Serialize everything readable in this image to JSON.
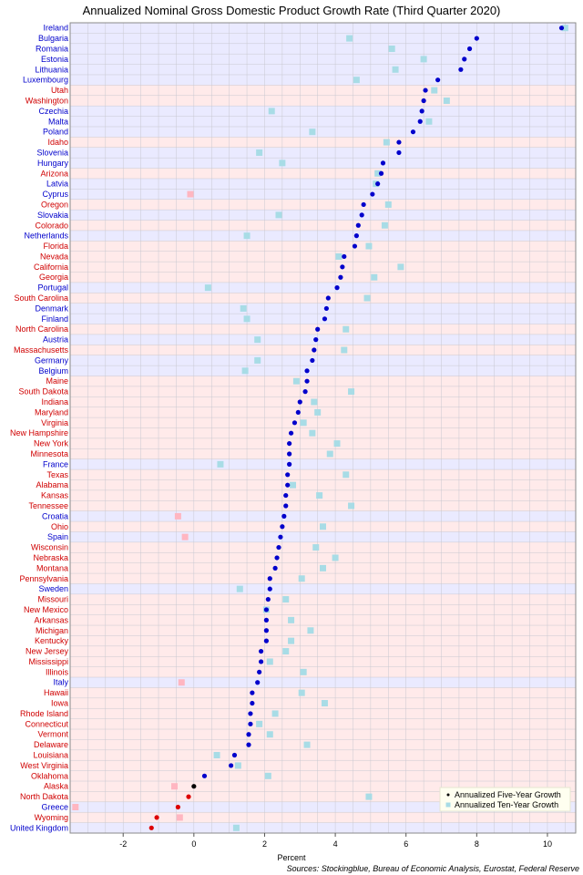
{
  "chart_data": {
    "type": "scatter",
    "title": "Annualized Nominal Gross Domestic Product Growth Rate (Third Quarter 2020)",
    "xlabel": "Percent",
    "source": "Sources: Stockingblue, Bureau of Economic Analysis, Eurostat, Federal Reserve",
    "xlim": [
      -3.5,
      10.8
    ],
    "x_ticks": [
      -2,
      0,
      2,
      4,
      6,
      8,
      10
    ],
    "grid": true,
    "legend_position": "bottom-right",
    "series": [
      {
        "name": "Annualized Five-Year Growth",
        "marker": "dot"
      },
      {
        "name": "Annualized Ten-Year Growth",
        "marker": "square"
      }
    ],
    "colors": {
      "us_label": "#d00000",
      "eu_label": "#0000cc",
      "us_band": "#ffeaea",
      "eu_band": "#eaeaff",
      "dot_positive": "#0000cc",
      "dot_negative": "#dd0000",
      "dot_zero": "#000000",
      "square_positive": "#a8dce6",
      "square_negative": "#ffb6c1",
      "grid": "#c8c8d0",
      "legend_bg": "#fffff0"
    },
    "rows": [
      {
        "name": "Ireland",
        "region": "eu",
        "five": 10.4,
        "ten": 10.5
      },
      {
        "name": "Bulgaria",
        "region": "eu",
        "five": 8.0,
        "ten": 4.4
      },
      {
        "name": "Romania",
        "region": "eu",
        "five": 7.8,
        "ten": 5.6
      },
      {
        "name": "Estonia",
        "region": "eu",
        "five": 7.65,
        "ten": 6.5
      },
      {
        "name": "Lithuania",
        "region": "eu",
        "five": 7.55,
        "ten": 5.7
      },
      {
        "name": "Luxembourg",
        "region": "eu",
        "five": 6.9,
        "ten": 4.6
      },
      {
        "name": "Utah",
        "region": "us",
        "five": 6.55,
        "ten": 6.8
      },
      {
        "name": "Washington",
        "region": "us",
        "five": 6.5,
        "ten": 7.15
      },
      {
        "name": "Czechia",
        "region": "eu",
        "five": 6.45,
        "ten": 2.2
      },
      {
        "name": "Malta",
        "region": "eu",
        "five": 6.4,
        "ten": 6.65
      },
      {
        "name": "Poland",
        "region": "eu",
        "five": 6.2,
        "ten": 3.35
      },
      {
        "name": "Idaho",
        "region": "us",
        "five": 5.8,
        "ten": 5.45
      },
      {
        "name": "Slovenia",
        "region": "eu",
        "five": 5.8,
        "ten": 1.85
      },
      {
        "name": "Hungary",
        "region": "eu",
        "five": 5.35,
        "ten": 2.5
      },
      {
        "name": "Arizona",
        "region": "us",
        "five": 5.3,
        "ten": 5.2
      },
      {
        "name": "Latvia",
        "region": "eu",
        "five": 5.2,
        "ten": 5.15
      },
      {
        "name": "Cyprus",
        "region": "eu",
        "five": 5.05,
        "ten": -0.1
      },
      {
        "name": "Oregon",
        "region": "us",
        "five": 4.8,
        "ten": 5.5
      },
      {
        "name": "Slovakia",
        "region": "eu",
        "five": 4.75,
        "ten": 2.4
      },
      {
        "name": "Colorado",
        "region": "us",
        "five": 4.65,
        "ten": 5.4
      },
      {
        "name": "Netherlands",
        "region": "eu",
        "five": 4.6,
        "ten": 1.5
      },
      {
        "name": "Florida",
        "region": "us",
        "five": 4.55,
        "ten": 4.95
      },
      {
        "name": "Nevada",
        "region": "us",
        "five": 4.25,
        "ten": 4.1
      },
      {
        "name": "California",
        "region": "us",
        "five": 4.2,
        "ten": 5.85
      },
      {
        "name": "Georgia",
        "region": "us",
        "five": 4.15,
        "ten": 5.1
      },
      {
        "name": "Portugal",
        "region": "eu",
        "five": 4.05,
        "ten": 0.4
      },
      {
        "name": "South Carolina",
        "region": "us",
        "five": 3.8,
        "ten": 4.9
      },
      {
        "name": "Denmark",
        "region": "eu",
        "five": 3.75,
        "ten": 1.4
      },
      {
        "name": "Finland",
        "region": "eu",
        "five": 3.7,
        "ten": 1.5
      },
      {
        "name": "North Carolina",
        "region": "us",
        "five": 3.5,
        "ten": 4.3
      },
      {
        "name": "Austria",
        "region": "eu",
        "five": 3.45,
        "ten": 1.8
      },
      {
        "name": "Massachusetts",
        "region": "us",
        "five": 3.4,
        "ten": 4.25
      },
      {
        "name": "Germany",
        "region": "eu",
        "five": 3.35,
        "ten": 1.8
      },
      {
        "name": "Belgium",
        "region": "eu",
        "five": 3.2,
        "ten": 1.45
      },
      {
        "name": "Maine",
        "region": "us",
        "five": 3.2,
        "ten": 2.9
      },
      {
        "name": "South Dakota",
        "region": "us",
        "five": 3.15,
        "ten": 4.45
      },
      {
        "name": "Indiana",
        "region": "us",
        "five": 3.0,
        "ten": 3.4
      },
      {
        "name": "Maryland",
        "region": "us",
        "five": 2.95,
        "ten": 3.5
      },
      {
        "name": "Virginia",
        "region": "us",
        "five": 2.85,
        "ten": 3.1
      },
      {
        "name": "New Hampshire",
        "region": "us",
        "five": 2.75,
        "ten": 3.35
      },
      {
        "name": "New York",
        "region": "us",
        "five": 2.7,
        "ten": 4.05
      },
      {
        "name": "Minnesota",
        "region": "us",
        "five": 2.7,
        "ten": 3.85
      },
      {
        "name": "France",
        "region": "eu",
        "five": 2.7,
        "ten": 0.75
      },
      {
        "name": "Texas",
        "region": "us",
        "five": 2.65,
        "ten": 4.3
      },
      {
        "name": "Alabama",
        "region": "us",
        "five": 2.65,
        "ten": 2.8
      },
      {
        "name": "Kansas",
        "region": "us",
        "five": 2.6,
        "ten": 3.55
      },
      {
        "name": "Tennessee",
        "region": "us",
        "five": 2.6,
        "ten": 4.45
      },
      {
        "name": "Croatia",
        "region": "eu",
        "five": 2.55,
        "ten": -0.45
      },
      {
        "name": "Ohio",
        "region": "us",
        "five": 2.5,
        "ten": 3.65
      },
      {
        "name": "Spain",
        "region": "eu",
        "five": 2.45,
        "ten": -0.25
      },
      {
        "name": "Wisconsin",
        "region": "us",
        "five": 2.4,
        "ten": 3.45
      },
      {
        "name": "Nebraska",
        "region": "us",
        "five": 2.35,
        "ten": 4.0
      },
      {
        "name": "Montana",
        "region": "us",
        "five": 2.3,
        "ten": 3.65
      },
      {
        "name": "Pennsylvania",
        "region": "us",
        "five": 2.15,
        "ten": 3.05
      },
      {
        "name": "Sweden",
        "region": "eu",
        "five": 2.15,
        "ten": 1.3
      },
      {
        "name": "Missouri",
        "region": "us",
        "five": 2.1,
        "ten": 2.6
      },
      {
        "name": "New Mexico",
        "region": "us",
        "five": 2.05,
        "ten": 2.05
      },
      {
        "name": "Arkansas",
        "region": "us",
        "five": 2.05,
        "ten": 2.75
      },
      {
        "name": "Michigan",
        "region": "us",
        "five": 2.05,
        "ten": 3.3
      },
      {
        "name": "Kentucky",
        "region": "us",
        "five": 2.05,
        "ten": 2.75
      },
      {
        "name": "New Jersey",
        "region": "us",
        "five": 1.9,
        "ten": 2.6
      },
      {
        "name": "Mississippi",
        "region": "us",
        "five": 1.9,
        "ten": 2.15
      },
      {
        "name": "Illinois",
        "region": "us",
        "five": 1.85,
        "ten": 3.1
      },
      {
        "name": "Italy",
        "region": "eu",
        "five": 1.8,
        "ten": -0.35
      },
      {
        "name": "Hawaii",
        "region": "us",
        "five": 1.65,
        "ten": 3.05
      },
      {
        "name": "Iowa",
        "region": "us",
        "five": 1.65,
        "ten": 3.7
      },
      {
        "name": "Rhode Island",
        "region": "us",
        "five": 1.6,
        "ten": 2.3
      },
      {
        "name": "Connecticut",
        "region": "us",
        "five": 1.6,
        "ten": 1.85
      },
      {
        "name": "Vermont",
        "region": "us",
        "five": 1.55,
        "ten": 2.15
      },
      {
        "name": "Delaware",
        "region": "us",
        "five": 1.55,
        "ten": 3.2
      },
      {
        "name": "Louisiana",
        "region": "us",
        "five": 1.15,
        "ten": 0.65
      },
      {
        "name": "West Virginia",
        "region": "us",
        "five": 1.05,
        "ten": 1.25
      },
      {
        "name": "Oklahoma",
        "region": "us",
        "five": 0.3,
        "ten": 2.1
      },
      {
        "name": "Alaska",
        "region": "us",
        "five": 0.0,
        "ten": -0.55
      },
      {
        "name": "North Dakota",
        "region": "us",
        "five": -0.15,
        "ten": 4.95
      },
      {
        "name": "Greece",
        "region": "eu",
        "five": -0.45,
        "ten": -3.35
      },
      {
        "name": "Wyoming",
        "region": "us",
        "five": -1.05,
        "ten": -0.4
      },
      {
        "name": "United Kingdom",
        "region": "eu",
        "five": -1.2,
        "ten": 1.2
      }
    ]
  }
}
